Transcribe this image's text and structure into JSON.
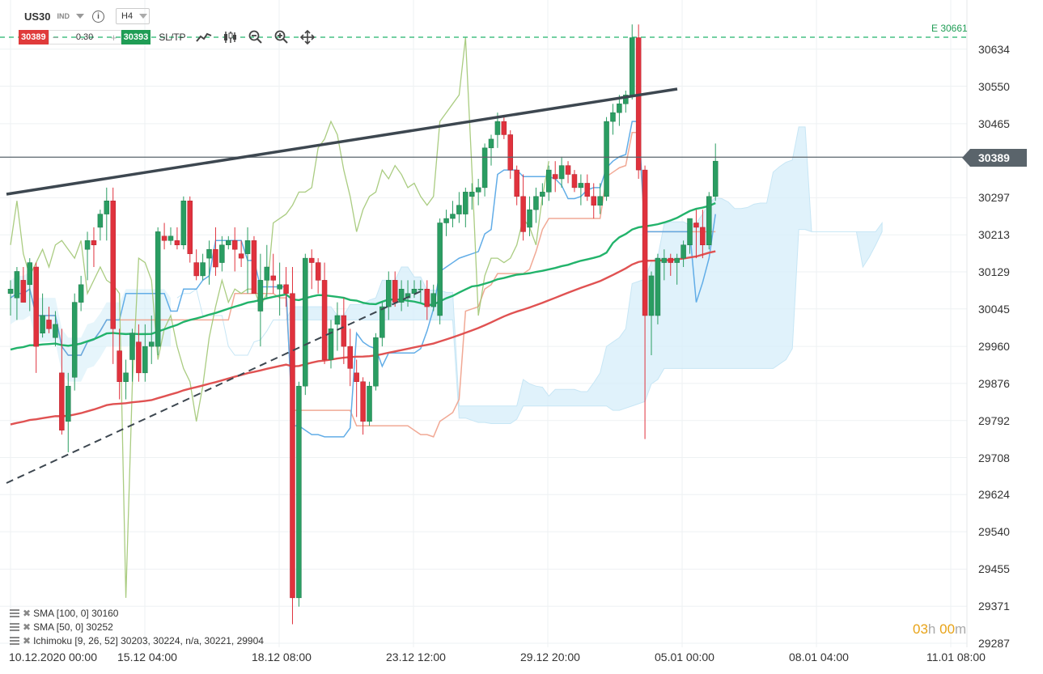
{
  "header": {
    "symbol": "US30",
    "instrument_type": "IND",
    "timeframe": "H4",
    "sell_price": "30389",
    "quantity": "0.30",
    "buy_price": "30393",
    "sltp_label": "SL/TP",
    "info_icon": "info-icon",
    "tools": [
      "line-chart-icon",
      "candles-icon",
      "zoom-out-icon",
      "zoom-in-icon",
      "move-icon"
    ]
  },
  "price_axis": {
    "ticks": [
      "30634",
      "30550",
      "30465",
      "30297",
      "30213",
      "30129",
      "30045",
      "29960",
      "29876",
      "29792",
      "29708",
      "29624",
      "29540",
      "29455",
      "29371",
      "29287"
    ],
    "current_price": "30389",
    "e_level_label": "E 30661",
    "range": [
      29287,
      30661
    ]
  },
  "time_axis": {
    "ticks": [
      "10.12.2020 00:00",
      "15.12 04:00",
      "18.12 08:00",
      "23.12 12:00",
      "29.12 20:00",
      "05.01 00:00",
      "08.01 04:00",
      "11.01 08:00"
    ]
  },
  "legend": [
    {
      "label": "SMA [100, 0] 30160"
    },
    {
      "label": "SMA [50, 0] 30252"
    },
    {
      "label": "Ichimoku [9, 26, 52] 30203, 30224, n/a, 30221, 29904"
    }
  ],
  "countdown": {
    "hours": "03",
    "h_unit": "h",
    "minutes": "00",
    "m_unit": "m"
  },
  "colors": {
    "bull": "#2a9d62",
    "bear": "#e0323d",
    "sma50": "#22b36b",
    "sma100": "#e05252",
    "tenkan": "#5aa9e6",
    "kijun": "#f0a08a",
    "chikou": "#9bc36b",
    "cloud": "#d6eef9",
    "trendline": "#3d4750"
  },
  "chart_data": {
    "type": "candlestick",
    "symbol": "US30",
    "timeframe": "H4",
    "ylim": [
      29287,
      30661
    ],
    "candles": [
      {
        "o": 30080,
        "h": 30110,
        "l": 30030,
        "c": 30090
      },
      {
        "o": 30070,
        "h": 30140,
        "l": 30020,
        "c": 30130
      },
      {
        "o": 30110,
        "h": 30140,
        "l": 30060,
        "c": 30060
      },
      {
        "o": 30100,
        "h": 30160,
        "l": 30040,
        "c": 30150
      },
      {
        "o": 30140,
        "h": 30150,
        "l": 29900,
        "c": 29960
      },
      {
        "o": 29990,
        "h": 30080,
        "l": 29980,
        "c": 30030
      },
      {
        "o": 30020,
        "h": 30050,
        "l": 29990,
        "c": 30000
      },
      {
        "o": 29980,
        "h": 30040,
        "l": 29960,
        "c": 30010
      },
      {
        "o": 29900,
        "h": 30000,
        "l": 29760,
        "c": 29770
      },
      {
        "o": 29790,
        "h": 29900,
        "l": 29720,
        "c": 29870
      },
      {
        "o": 29890,
        "h": 30080,
        "l": 29860,
        "c": 30060
      },
      {
        "o": 30060,
        "h": 30120,
        "l": 30040,
        "c": 30100
      },
      {
        "o": 30180,
        "h": 30220,
        "l": 30110,
        "c": 30200
      },
      {
        "o": 30200,
        "h": 30230,
        "l": 30140,
        "c": 30190
      },
      {
        "o": 30230,
        "h": 30270,
        "l": 30200,
        "c": 30260
      },
      {
        "o": 30260,
        "h": 30320,
        "l": 30200,
        "c": 30290
      },
      {
        "o": 30290,
        "h": 30320,
        "l": 29920,
        "c": 30000
      },
      {
        "o": 29950,
        "h": 30000,
        "l": 29840,
        "c": 29880
      },
      {
        "o": 29880,
        "h": 29930,
        "l": 29840,
        "c": 29900
      },
      {
        "o": 29930,
        "h": 30000,
        "l": 29880,
        "c": 29990
      },
      {
        "o": 29970,
        "h": 30010,
        "l": 29880,
        "c": 29900
      },
      {
        "o": 29900,
        "h": 30010,
        "l": 29880,
        "c": 29960
      },
      {
        "o": 29960,
        "h": 30030,
        "l": 29920,
        "c": 29970
      },
      {
        "o": 29960,
        "h": 30230,
        "l": 29940,
        "c": 30220
      },
      {
        "o": 30210,
        "h": 30240,
        "l": 30180,
        "c": 30200
      },
      {
        "o": 30200,
        "h": 30230,
        "l": 30190,
        "c": 30210
      },
      {
        "o": 30200,
        "h": 30230,
        "l": 30180,
        "c": 30190
      },
      {
        "o": 30190,
        "h": 30300,
        "l": 30180,
        "c": 30290
      },
      {
        "o": 30290,
        "h": 30300,
        "l": 30150,
        "c": 30170
      },
      {
        "o": 30150,
        "h": 30180,
        "l": 30110,
        "c": 30120
      },
      {
        "o": 30120,
        "h": 30170,
        "l": 30110,
        "c": 30150
      },
      {
        "o": 30160,
        "h": 30200,
        "l": 30100,
        "c": 30180
      },
      {
        "o": 30180,
        "h": 30230,
        "l": 30120,
        "c": 30140
      },
      {
        "o": 30150,
        "h": 30210,
        "l": 30130,
        "c": 30190
      },
      {
        "o": 30190,
        "h": 30210,
        "l": 30180,
        "c": 30200
      },
      {
        "o": 30200,
        "h": 30230,
        "l": 30130,
        "c": 30180
      },
      {
        "o": 30170,
        "h": 30200,
        "l": 30140,
        "c": 30160
      },
      {
        "o": 30170,
        "h": 30230,
        "l": 30080,
        "c": 30200
      },
      {
        "o": 30200,
        "h": 30210,
        "l": 30080,
        "c": 30080
      },
      {
        "o": 30040,
        "h": 30170,
        "l": 29960,
        "c": 30110
      },
      {
        "o": 30110,
        "h": 30190,
        "l": 30070,
        "c": 30140
      },
      {
        "o": 30120,
        "h": 30170,
        "l": 30080,
        "c": 30110
      },
      {
        "o": 30090,
        "h": 30150,
        "l": 30030,
        "c": 30100
      },
      {
        "o": 30100,
        "h": 30140,
        "l": 30050,
        "c": 30080
      },
      {
        "o": 30080,
        "h": 30140,
        "l": 29330,
        "c": 29390
      },
      {
        "o": 29390,
        "h": 29880,
        "l": 29370,
        "c": 29870
      },
      {
        "o": 29870,
        "h": 30170,
        "l": 29850,
        "c": 30160
      },
      {
        "o": 30160,
        "h": 30180,
        "l": 30090,
        "c": 30150
      },
      {
        "o": 30150,
        "h": 30160,
        "l": 30080,
        "c": 30110
      },
      {
        "o": 30110,
        "h": 30150,
        "l": 29920,
        "c": 29930
      },
      {
        "o": 29930,
        "h": 30020,
        "l": 29910,
        "c": 30000
      },
      {
        "o": 30010,
        "h": 30060,
        "l": 29950,
        "c": 30030
      },
      {
        "o": 30030,
        "h": 30070,
        "l": 29920,
        "c": 29960
      },
      {
        "o": 29960,
        "h": 30000,
        "l": 29870,
        "c": 29910
      },
      {
        "o": 29900,
        "h": 29930,
        "l": 29800,
        "c": 29880
      },
      {
        "o": 29880,
        "h": 29890,
        "l": 29760,
        "c": 29790
      },
      {
        "o": 29790,
        "h": 29880,
        "l": 29780,
        "c": 29870
      },
      {
        "o": 29870,
        "h": 29990,
        "l": 29860,
        "c": 29980
      },
      {
        "o": 29980,
        "h": 30060,
        "l": 29960,
        "c": 30050
      },
      {
        "o": 30050,
        "h": 30130,
        "l": 30020,
        "c": 30110
      },
      {
        "o": 30110,
        "h": 30130,
        "l": 30050,
        "c": 30060
      },
      {
        "o": 30060,
        "h": 30110,
        "l": 30040,
        "c": 30090
      },
      {
        "o": 30070,
        "h": 30110,
        "l": 30050,
        "c": 30080
      },
      {
        "o": 30080,
        "h": 30110,
        "l": 30070,
        "c": 30090
      },
      {
        "o": 30090,
        "h": 30110,
        "l": 30060,
        "c": 30090
      },
      {
        "o": 30090,
        "h": 30110,
        "l": 30020,
        "c": 30050
      },
      {
        "o": 30050,
        "h": 30100,
        "l": 30040,
        "c": 30080
      },
      {
        "o": 30030,
        "h": 30250,
        "l": 30010,
        "c": 30240
      },
      {
        "o": 30240,
        "h": 30270,
        "l": 30210,
        "c": 30250
      },
      {
        "o": 30250,
        "h": 30290,
        "l": 30230,
        "c": 30260
      },
      {
        "o": 30260,
        "h": 30310,
        "l": 30240,
        "c": 30280
      },
      {
        "o": 30260,
        "h": 30320,
        "l": 30230,
        "c": 30310
      },
      {
        "o": 30300,
        "h": 30330,
        "l": 30270,
        "c": 30310
      },
      {
        "o": 30310,
        "h": 30340,
        "l": 30280,
        "c": 30320
      },
      {
        "o": 30320,
        "h": 30420,
        "l": 30300,
        "c": 30410
      },
      {
        "o": 30410,
        "h": 30440,
        "l": 30370,
        "c": 30430
      },
      {
        "o": 30440,
        "h": 30490,
        "l": 30410,
        "c": 30470
      },
      {
        "o": 30470,
        "h": 30480,
        "l": 30430,
        "c": 30440
      },
      {
        "o": 30440,
        "h": 30450,
        "l": 30340,
        "c": 30360
      },
      {
        "o": 30360,
        "h": 30370,
        "l": 30280,
        "c": 30300
      },
      {
        "o": 30300,
        "h": 30350,
        "l": 30200,
        "c": 30220
      },
      {
        "o": 30230,
        "h": 30300,
        "l": 30210,
        "c": 30270
      },
      {
        "o": 30270,
        "h": 30320,
        "l": 30240,
        "c": 30300
      },
      {
        "o": 30300,
        "h": 30330,
        "l": 30280,
        "c": 30310
      },
      {
        "o": 30310,
        "h": 30370,
        "l": 30290,
        "c": 30360
      },
      {
        "o": 30350,
        "h": 30380,
        "l": 30310,
        "c": 30340
      },
      {
        "o": 30340,
        "h": 30390,
        "l": 30320,
        "c": 30370
      },
      {
        "o": 30370,
        "h": 30380,
        "l": 30330,
        "c": 30350
      },
      {
        "o": 30350,
        "h": 30360,
        "l": 30310,
        "c": 30320
      },
      {
        "o": 30320,
        "h": 30350,
        "l": 30280,
        "c": 30330
      },
      {
        "o": 30330,
        "h": 30350,
        "l": 30290,
        "c": 30300
      },
      {
        "o": 30300,
        "h": 30330,
        "l": 30250,
        "c": 30280
      },
      {
        "o": 30280,
        "h": 30330,
        "l": 30260,
        "c": 30300
      },
      {
        "o": 30300,
        "h": 30480,
        "l": 30290,
        "c": 30470
      },
      {
        "o": 30470,
        "h": 30510,
        "l": 30440,
        "c": 30490
      },
      {
        "o": 30490,
        "h": 30530,
        "l": 30460,
        "c": 30510
      },
      {
        "o": 30510,
        "h": 30540,
        "l": 30490,
        "c": 30530
      },
      {
        "o": 30530,
        "h": 30690,
        "l": 30520,
        "c": 30660
      },
      {
        "o": 30660,
        "h": 30690,
        "l": 30340,
        "c": 30360
      },
      {
        "o": 30360,
        "h": 30370,
        "l": 29750,
        "c": 30030
      },
      {
        "o": 30030,
        "h": 30130,
        "l": 29940,
        "c": 30120
      },
      {
        "o": 30030,
        "h": 30170,
        "l": 30010,
        "c": 30160
      },
      {
        "o": 30150,
        "h": 30180,
        "l": 30110,
        "c": 30160
      },
      {
        "o": 30160,
        "h": 30170,
        "l": 30120,
        "c": 30150
      },
      {
        "o": 30150,
        "h": 30170,
        "l": 30100,
        "c": 30160
      },
      {
        "o": 30160,
        "h": 30200,
        "l": 30140,
        "c": 30190
      },
      {
        "o": 30190,
        "h": 30250,
        "l": 30170,
        "c": 30250
      },
      {
        "o": 30240,
        "h": 30270,
        "l": 30160,
        "c": 30230
      },
      {
        "o": 30230,
        "h": 30270,
        "l": 30160,
        "c": 30190
      },
      {
        "o": 30190,
        "h": 30310,
        "l": 30180,
        "c": 30300
      },
      {
        "o": 30300,
        "h": 30420,
        "l": 30290,
        "c": 30380
      }
    ]
  }
}
